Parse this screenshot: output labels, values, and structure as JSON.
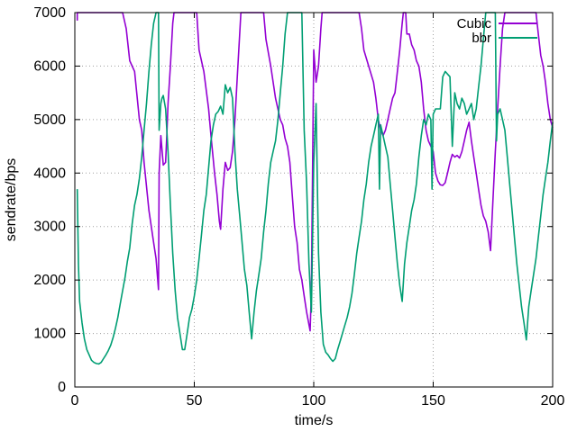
{
  "chart_data": {
    "type": "line",
    "xlabel": "time/s",
    "ylabel": "sendrate/bps",
    "xlim": [
      0,
      200
    ],
    "ylim": [
      0,
      7000
    ],
    "xticks": [
      0,
      50,
      100,
      150,
      200
    ],
    "yticks": [
      0,
      1000,
      2000,
      3000,
      4000,
      5000,
      6000,
      7000
    ],
    "grid": true,
    "legend_position": "top-right",
    "series": [
      {
        "name": "Cubic",
        "color": "#9400d3",
        "points": [
          [
            1,
            6850
          ],
          [
            1,
            7000
          ],
          [
            20,
            7000
          ],
          [
            21.5,
            6700
          ],
          [
            23,
            6100
          ],
          [
            25,
            5900
          ],
          [
            27,
            5000
          ],
          [
            28,
            4800
          ],
          [
            29,
            4200
          ],
          [
            31,
            3300
          ],
          [
            33,
            2700
          ],
          [
            34,
            2400
          ],
          [
            35,
            1820
          ],
          [
            35.3,
            4000
          ],
          [
            36,
            4700
          ],
          [
            37,
            4150
          ],
          [
            38,
            4200
          ],
          [
            38.5,
            4700
          ],
          [
            39,
            5300
          ],
          [
            40,
            6000
          ],
          [
            41,
            6800
          ],
          [
            41.5,
            7000
          ],
          [
            51,
            7000
          ],
          [
            52,
            6300
          ],
          [
            54,
            5900
          ],
          [
            56,
            5200
          ],
          [
            57,
            4700
          ],
          [
            58.5,
            4000
          ],
          [
            59.5,
            3600
          ],
          [
            60.5,
            3100
          ],
          [
            61,
            2950
          ],
          [
            62,
            3700
          ],
          [
            63,
            4200
          ],
          [
            64,
            4050
          ],
          [
            65,
            4100
          ],
          [
            66,
            4400
          ],
          [
            67,
            5000
          ],
          [
            68,
            5800
          ],
          [
            69.5,
            7000
          ],
          [
            79,
            7000
          ],
          [
            80,
            6500
          ],
          [
            82,
            6000
          ],
          [
            84,
            5400
          ],
          [
            86,
            5000
          ],
          [
            87,
            4900
          ],
          [
            88,
            4650
          ],
          [
            89,
            4500
          ],
          [
            90,
            4200
          ],
          [
            91,
            3600
          ],
          [
            92,
            3000
          ],
          [
            93,
            2700
          ],
          [
            94,
            2200
          ],
          [
            95,
            2000
          ],
          [
            96,
            1700
          ],
          [
            97,
            1400
          ],
          [
            98.5,
            1050
          ],
          [
            99,
            1800
          ],
          [
            100,
            6300
          ],
          [
            101,
            5700
          ],
          [
            102,
            6000
          ],
          [
            103,
            6700
          ],
          [
            103.5,
            7000
          ],
          [
            119,
            7000
          ],
          [
            120,
            6700
          ],
          [
            121,
            6300
          ],
          [
            123,
            6000
          ],
          [
            125,
            5700
          ],
          [
            126,
            5400
          ],
          [
            127,
            5000
          ],
          [
            128,
            4800
          ],
          [
            129,
            4700
          ],
          [
            130,
            4800
          ],
          [
            131,
            5000
          ],
          [
            132,
            5200
          ],
          [
            133,
            5400
          ],
          [
            134,
            5500
          ],
          [
            135,
            5900
          ],
          [
            136,
            6300
          ],
          [
            137,
            6800
          ],
          [
            137.5,
            7000
          ],
          [
            138.5,
            7000
          ],
          [
            139,
            6600
          ],
          [
            140,
            6600
          ],
          [
            141,
            6400
          ],
          [
            142,
            6300
          ],
          [
            143,
            6100
          ],
          [
            144,
            6000
          ],
          [
            145,
            5700
          ],
          [
            146,
            5200
          ],
          [
            147,
            4800
          ],
          [
            148,
            4600
          ],
          [
            149,
            4500
          ],
          [
            150,
            4400
          ],
          [
            151,
            4000
          ],
          [
            152,
            3850
          ],
          [
            153,
            3780
          ],
          [
            154,
            3770
          ],
          [
            155,
            3820
          ],
          [
            156,
            4000
          ],
          [
            157,
            4200
          ],
          [
            158,
            4350
          ],
          [
            159,
            4300
          ],
          [
            160,
            4330
          ],
          [
            161,
            4280
          ],
          [
            162,
            4400
          ],
          [
            163,
            4600
          ],
          [
            164,
            4800
          ],
          [
            165,
            4950
          ],
          [
            166,
            4600
          ],
          [
            167,
            4300
          ],
          [
            168,
            4000
          ],
          [
            169,
            3700
          ],
          [
            170,
            3400
          ],
          [
            171,
            3200
          ],
          [
            172,
            3100
          ],
          [
            173,
            2900
          ],
          [
            174,
            2550
          ],
          [
            175,
            3500
          ],
          [
            176,
            4400
          ],
          [
            177,
            5200
          ],
          [
            178,
            6000
          ],
          [
            179,
            6700
          ],
          [
            180,
            7000
          ],
          [
            193,
            7000
          ],
          [
            194,
            6600
          ],
          [
            195,
            6200
          ],
          [
            196,
            6000
          ],
          [
            197,
            5700
          ],
          [
            198,
            5300
          ],
          [
            199,
            5000
          ],
          [
            200,
            4850
          ]
        ]
      },
      {
        "name": "bbr",
        "color": "#009e73",
        "points": [
          [
            1,
            3700
          ],
          [
            1.5,
            2300
          ],
          [
            2,
            1600
          ],
          [
            3,
            1200
          ],
          [
            4,
            900
          ],
          [
            5,
            700
          ],
          [
            6,
            600
          ],
          [
            7,
            500
          ],
          [
            8,
            460
          ],
          [
            9,
            440
          ],
          [
            10,
            430
          ],
          [
            11,
            460
          ],
          [
            12,
            530
          ],
          [
            13,
            600
          ],
          [
            14,
            680
          ],
          [
            15,
            780
          ],
          [
            16,
            920
          ],
          [
            17,
            1100
          ],
          [
            18,
            1300
          ],
          [
            19,
            1550
          ],
          [
            20,
            1800
          ],
          [
            21,
            2050
          ],
          [
            22,
            2350
          ],
          [
            23,
            2600
          ],
          [
            24,
            3050
          ],
          [
            25,
            3400
          ],
          [
            26,
            3600
          ],
          [
            27,
            3900
          ],
          [
            28,
            4300
          ],
          [
            29,
            4800
          ],
          [
            30,
            5300
          ],
          [
            31,
            5900
          ],
          [
            32,
            6400
          ],
          [
            33,
            6800
          ],
          [
            34,
            7000
          ],
          [
            35,
            7000
          ],
          [
            35.3,
            4800
          ],
          [
            36,
            5300
          ],
          [
            36.5,
            5400
          ],
          [
            37,
            5450
          ],
          [
            38,
            5200
          ],
          [
            39,
            4400
          ],
          [
            40,
            3400
          ],
          [
            41,
            2500
          ],
          [
            42,
            1800
          ],
          [
            43,
            1300
          ],
          [
            44,
            1000
          ],
          [
            45,
            700
          ],
          [
            46,
            700
          ],
          [
            47,
            1000
          ],
          [
            48,
            1300
          ],
          [
            49,
            1450
          ],
          [
            50,
            1700
          ],
          [
            51,
            2000
          ],
          [
            52,
            2400
          ],
          [
            53,
            2850
          ],
          [
            54,
            3300
          ],
          [
            55,
            3600
          ],
          [
            56,
            4100
          ],
          [
            57,
            4600
          ],
          [
            58,
            4900
          ],
          [
            59,
            5100
          ],
          [
            60,
            5150
          ],
          [
            61,
            5250
          ],
          [
            62,
            5100
          ],
          [
            63,
            5650
          ],
          [
            64,
            5500
          ],
          [
            65,
            5600
          ],
          [
            66,
            5400
          ],
          [
            67,
            4400
          ],
          [
            68,
            3700
          ],
          [
            69,
            3200
          ],
          [
            70,
            2700
          ],
          [
            71,
            2200
          ],
          [
            72,
            1900
          ],
          [
            73,
            1400
          ],
          [
            74,
            900
          ],
          [
            75,
            1400
          ],
          [
            76,
            1800
          ],
          [
            77,
            2100
          ],
          [
            78,
            2400
          ],
          [
            79,
            2900
          ],
          [
            80,
            3300
          ],
          [
            81,
            3800
          ],
          [
            82,
            4200
          ],
          [
            83,
            4400
          ],
          [
            84,
            4600
          ],
          [
            85,
            5000
          ],
          [
            86,
            5500
          ],
          [
            87,
            6000
          ],
          [
            88,
            6600
          ],
          [
            89,
            7000
          ],
          [
            95,
            7000
          ],
          [
            96,
            4800
          ],
          [
            97,
            3800
          ],
          [
            98,
            2300
          ],
          [
            99,
            1400
          ],
          [
            100,
            4200
          ],
          [
            101,
            5300
          ],
          [
            101.5,
            3800
          ],
          [
            102,
            2500
          ],
          [
            103,
            1400
          ],
          [
            104,
            800
          ],
          [
            105,
            650
          ],
          [
            106,
            600
          ],
          [
            107,
            530
          ],
          [
            108,
            480
          ],
          [
            109,
            530
          ],
          [
            110,
            700
          ],
          [
            111,
            850
          ],
          [
            112,
            1000
          ],
          [
            113,
            1150
          ],
          [
            114,
            1300
          ],
          [
            115,
            1500
          ],
          [
            116,
            1750
          ],
          [
            117,
            2100
          ],
          [
            118,
            2500
          ],
          [
            119,
            2800
          ],
          [
            120,
            3100
          ],
          [
            121,
            3500
          ],
          [
            122,
            3800
          ],
          [
            123,
            4200
          ],
          [
            124,
            4500
          ],
          [
            125,
            4700
          ],
          [
            126,
            4900
          ],
          [
            127,
            5100
          ],
          [
            127.5,
            3700
          ],
          [
            128,
            4900
          ],
          [
            129,
            4700
          ],
          [
            130,
            4500
          ],
          [
            131,
            4300
          ],
          [
            132,
            3800
          ],
          [
            133,
            3300
          ],
          [
            134,
            2800
          ],
          [
            135,
            2300
          ],
          [
            136,
            1900
          ],
          [
            137,
            1600
          ],
          [
            138,
            2300
          ],
          [
            139,
            2700
          ],
          [
            140,
            3000
          ],
          [
            141,
            3300
          ],
          [
            142,
            3500
          ],
          [
            143,
            3800
          ],
          [
            144,
            4300
          ],
          [
            145,
            4700
          ],
          [
            146,
            5000
          ],
          [
            147,
            4900
          ],
          [
            148,
            5100
          ],
          [
            149,
            5000
          ],
          [
            149.5,
            3700
          ],
          [
            150,
            5100
          ],
          [
            151,
            5200
          ],
          [
            152,
            5200
          ],
          [
            153,
            5200
          ],
          [
            154,
            5800
          ],
          [
            155,
            5900
          ],
          [
            156,
            5850
          ],
          [
            157,
            5800
          ],
          [
            158,
            4500
          ],
          [
            159,
            5500
          ],
          [
            160,
            5300
          ],
          [
            161,
            5200
          ],
          [
            162,
            5400
          ],
          [
            163,
            5300
          ],
          [
            164,
            5100
          ],
          [
            165,
            5200
          ],
          [
            166,
            5300
          ],
          [
            167,
            5000
          ],
          [
            168,
            5200
          ],
          [
            169,
            5600
          ],
          [
            170,
            6000
          ],
          [
            171,
            6500
          ],
          [
            172,
            7000
          ],
          [
            176,
            7000
          ],
          [
            176.5,
            4600
          ],
          [
            177,
            5100
          ],
          [
            178,
            5200
          ],
          [
            179,
            5000
          ],
          [
            180,
            4800
          ],
          [
            181,
            4300
          ],
          [
            182,
            3800
          ],
          [
            183,
            3300
          ],
          [
            184,
            2800
          ],
          [
            185,
            2300
          ],
          [
            186,
            1900
          ],
          [
            187,
            1500
          ],
          [
            188,
            1200
          ],
          [
            189,
            880
          ],
          [
            190,
            1500
          ],
          [
            191,
            1800
          ],
          [
            192,
            2100
          ],
          [
            193,
            2400
          ],
          [
            194,
            2800
          ],
          [
            195,
            3200
          ],
          [
            196,
            3600
          ],
          [
            197,
            3900
          ],
          [
            198,
            4200
          ],
          [
            199,
            4600
          ],
          [
            200,
            4950
          ]
        ]
      }
    ]
  }
}
